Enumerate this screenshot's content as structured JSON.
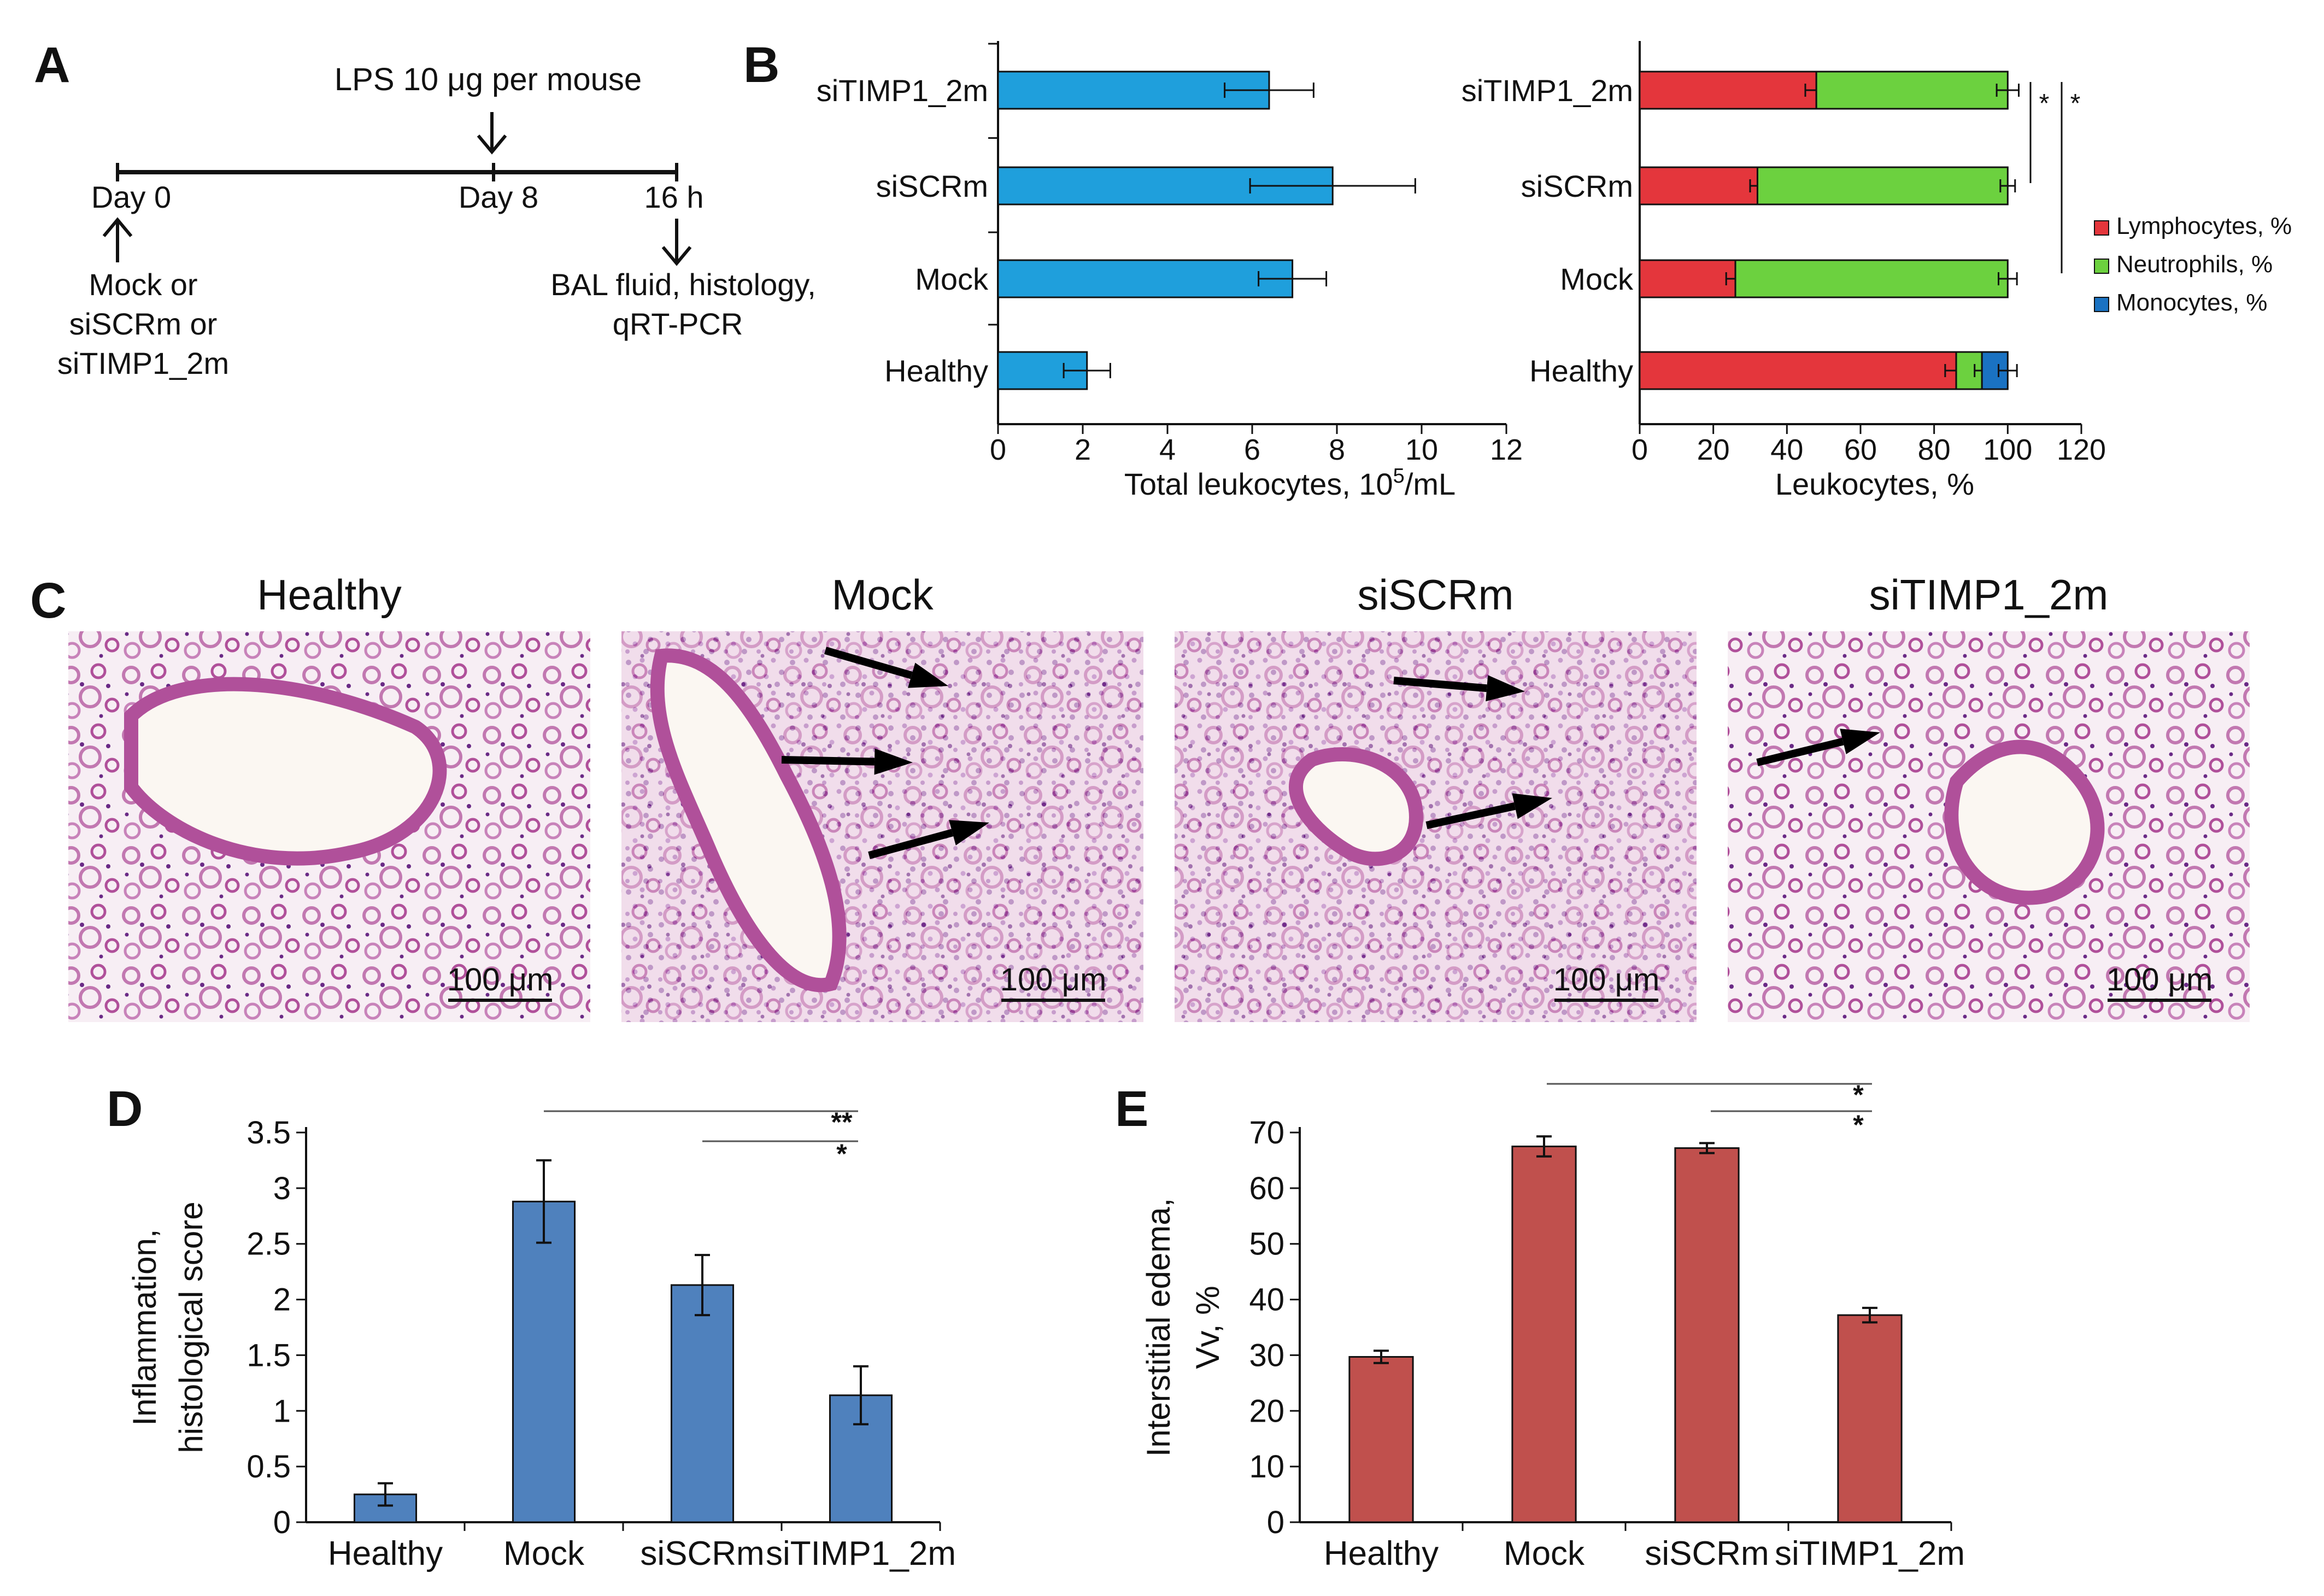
{
  "panel_letters": {
    "a": "A",
    "b": "B",
    "c": "C",
    "d": "D",
    "e": "E"
  },
  "colors": {
    "leukocyte_bar": "#1f9fdc",
    "lymphocytes": "#e4363c",
    "neutrophils": "#6cd13f",
    "monocytes": "#1a72c2",
    "inflammation_bar": "#4f81bd",
    "edema_bar": "#c0504d",
    "tissue_background": "#f7eef4",
    "tissue_stain": "#b0509a"
  },
  "timeline": {
    "top_label": "LPS 10 μg per mouse",
    "day0": "Day 0",
    "day8": "Day 8",
    "h16": "16 h",
    "left_notes": [
      "Mock or",
      "siSCRm or",
      "siTIMP1_2m"
    ],
    "right_notes": [
      "BAL fluid, histology,",
      "qRT-PCR"
    ]
  },
  "chart_data": [
    {
      "id": "B-left",
      "type": "bar",
      "orientation": "horizontal",
      "categories": [
        "siTIMP1_2m",
        "siSCRm",
        "Mock",
        "Healthy"
      ],
      "values": [
        6.4,
        7.9,
        6.95,
        2.1
      ],
      "errors": [
        1.05,
        1.95,
        0.8,
        0.55
      ],
      "xlabel_prefix": "Total leukocytes, 10",
      "xlabel_sup": "5",
      "xlabel_suffix": "/mL",
      "xlim": [
        0,
        12
      ],
      "ticks": [
        "0",
        "2",
        "4",
        "6",
        "8",
        "10",
        "12"
      ],
      "grid": false
    },
    {
      "id": "B-right",
      "type": "bar",
      "orientation": "horizontal",
      "stacked": true,
      "categories": [
        "siTIMP1_2m",
        "siSCRm",
        "Mock",
        "Healthy"
      ],
      "series": [
        {
          "name": "Lymphocytes, %",
          "values": [
            48,
            32,
            26,
            86
          ],
          "errors": [
            3,
            2,
            2.5,
            3
          ]
        },
        {
          "name": "Neutrophils, %",
          "values": [
            52,
            68,
            74,
            7
          ],
          "errors": [
            3,
            2,
            2.5,
            2
          ]
        },
        {
          "name": "Monocytes, %",
          "values": [
            0,
            0,
            0,
            7
          ],
          "errors": [
            0,
            0,
            0,
            2.5
          ]
        }
      ],
      "xlabel": "Leukocytes, %",
      "xlim": [
        0,
        120
      ],
      "ticks": [
        "0",
        "20",
        "40",
        "60",
        "80",
        "100",
        "120"
      ],
      "legend_position": "right",
      "annotations": [
        "*",
        "*"
      ],
      "grid": false
    },
    {
      "id": "D",
      "type": "bar",
      "categories": [
        "Healthy",
        "Mock",
        "siSCRm",
        "siTIMP1_2m"
      ],
      "values": [
        0.25,
        2.88,
        2.13,
        1.14
      ],
      "errors": [
        0.1,
        0.37,
        0.27,
        0.26
      ],
      "ylabel_lines": [
        "Inflammation,",
        "histological score"
      ],
      "ylim": [
        0,
        3.5
      ],
      "ticks": [
        "0",
        "0.5",
        "1",
        "1.5",
        "2",
        "2.5",
        "3",
        "3.5"
      ],
      "significance": [
        "**",
        "*"
      ],
      "grid": false
    },
    {
      "id": "E",
      "type": "bar",
      "categories": [
        "Healthy",
        "Mock",
        "siSCRm",
        "siTIMP1_2m"
      ],
      "values": [
        29.7,
        67.5,
        67.2,
        37.2
      ],
      "errors": [
        1.1,
        1.8,
        0.9,
        1.3
      ],
      "ylabel_lines": [
        "Interstitial edema,",
        "Vv, %"
      ],
      "ylim": [
        0,
        70
      ],
      "ticks": [
        "0",
        "10",
        "20",
        "30",
        "40",
        "50",
        "60",
        "70"
      ],
      "significance": [
        "*",
        "*"
      ],
      "grid": false
    }
  ],
  "histology": {
    "panels": [
      {
        "title": "Healthy",
        "scale_bar": "100 μm",
        "arrows": 0
      },
      {
        "title": "Mock",
        "scale_bar": "100 μm",
        "arrows": 3
      },
      {
        "title": "siSCRm",
        "scale_bar": "100 μm",
        "arrows": 2
      },
      {
        "title": "siTIMP1_2m",
        "scale_bar": "100 μm",
        "arrows": 1
      }
    ]
  }
}
